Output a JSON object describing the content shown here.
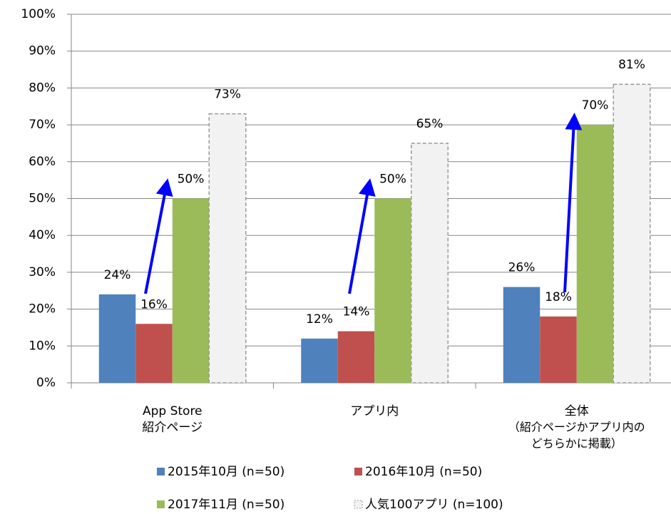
{
  "chart_data": {
    "type": "bar",
    "categories": [
      [
        "App Store",
        "紹介ページ"
      ],
      [
        "アプリ内"
      ],
      [
        "全体",
        "（紹介ページかアプリ内の",
        "どちらかに掲載）"
      ]
    ],
    "series": [
      {
        "name": "2015年10月 (n=50)",
        "color": "#4f81bd",
        "values": [
          24,
          12,
          26
        ],
        "value_labels": [
          "24%",
          "12%",
          "26%"
        ]
      },
      {
        "name": "2016年10月 (n=50)",
        "color": "#c0504d",
        "values": [
          16,
          14,
          18
        ],
        "value_labels": [
          "16%",
          "14%",
          "18%"
        ]
      },
      {
        "name": "2017年11月 (n=50)",
        "color": "#9bbb59",
        "values": [
          50,
          50,
          70
        ],
        "value_labels": [
          "50%",
          "50%",
          "70%"
        ]
      },
      {
        "name": "人気100アプリ (n=100)",
        "color": "#f2f2f2",
        "edgecolor": "#999999",
        "linestyle": "dashed",
        "values": [
          73,
          65,
          81
        ],
        "value_labels": [
          "73%",
          "65%",
          "81%"
        ]
      }
    ],
    "ylim": [
      0,
      100
    ],
    "yticks": [
      {
        "value": 0,
        "label": "0%"
      },
      {
        "value": 10,
        "label": "10%"
      },
      {
        "value": 20,
        "label": "20%"
      },
      {
        "value": 30,
        "label": "30%"
      },
      {
        "value": 40,
        "label": "40%"
      },
      {
        "value": 50,
        "label": "50%"
      },
      {
        "value": 60,
        "label": "60%"
      },
      {
        "value": 70,
        "label": "70%"
      },
      {
        "value": 80,
        "label": "80%"
      },
      {
        "value": 90,
        "label": "90%"
      },
      {
        "value": 100,
        "label": "100%"
      }
    ],
    "grid": true,
    "legend": "bottom"
  }
}
